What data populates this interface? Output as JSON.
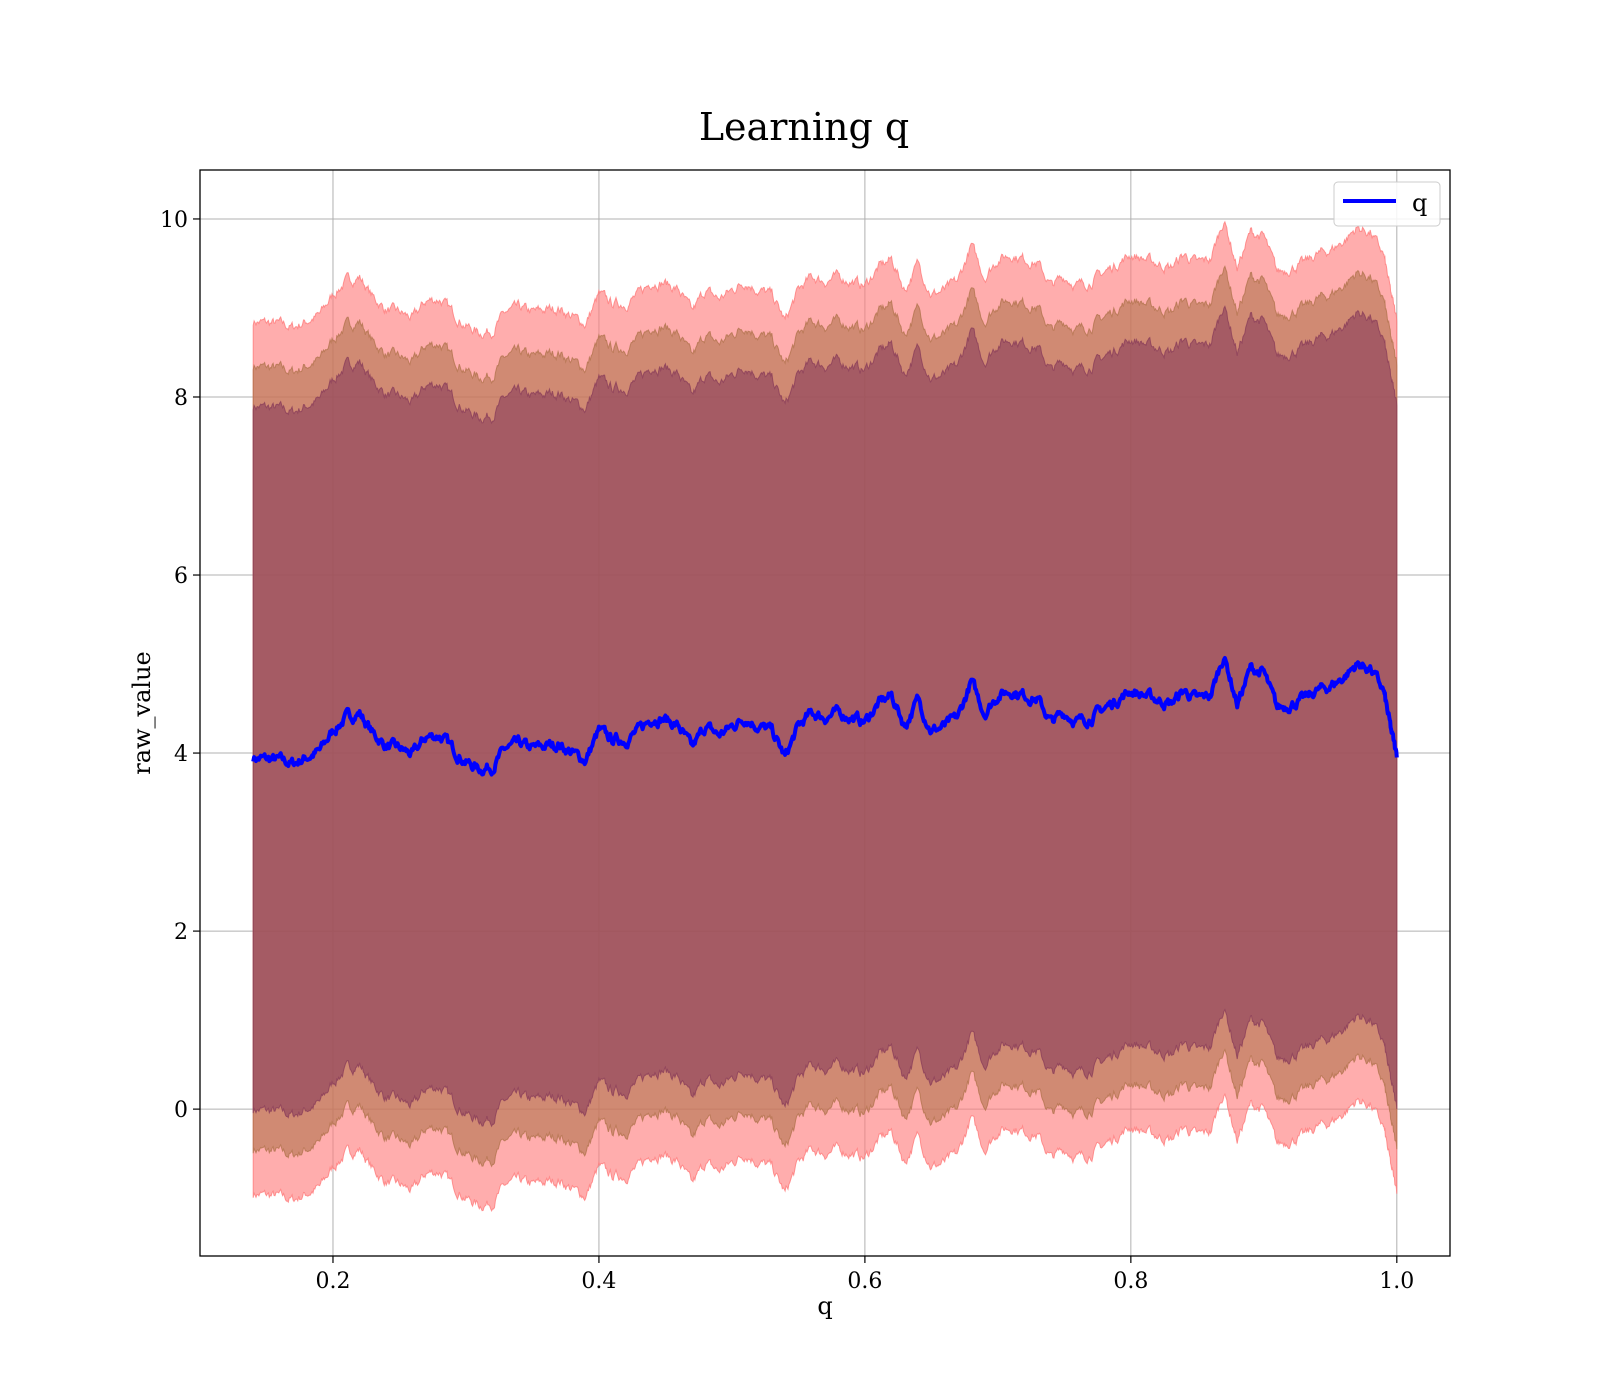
{
  "chart_data": {
    "type": "line",
    "title": "Learning q",
    "xlabel": "q",
    "ylabel": "raw_value",
    "xlim": [
      0.1,
      1.04
    ],
    "ylim": [
      -1.65,
      10.55
    ],
    "xticks": [
      0.2,
      0.4,
      0.6,
      0.8,
      1.0
    ],
    "xtick_labels": [
      "0.2",
      "0.4",
      "0.6",
      "0.8",
      "1.0"
    ],
    "yticks": [
      0,
      2,
      4,
      6,
      8,
      10
    ],
    "ytick_labels": [
      "0",
      "2",
      "4",
      "6",
      "8",
      "10"
    ],
    "grid": true,
    "legend": {
      "position": "top-right",
      "entries": [
        "q"
      ]
    },
    "colors": {
      "line": "#0000ff",
      "band_outer": "#ff7b7b",
      "band_middle": "#b3744f",
      "band_inner": "#8b3f5a",
      "grid": "#b0b0b0",
      "axis": "#000000"
    },
    "series": [
      {
        "name": "q",
        "x": [
          0.14,
          0.15,
          0.16,
          0.17,
          0.18,
          0.19,
          0.2,
          0.21,
          0.22,
          0.23,
          0.24,
          0.25,
          0.26,
          0.27,
          0.28,
          0.29,
          0.3,
          0.31,
          0.32,
          0.33,
          0.34,
          0.35,
          0.36,
          0.37,
          0.38,
          0.39,
          0.4,
          0.41,
          0.42,
          0.43,
          0.44,
          0.45,
          0.46,
          0.47,
          0.48,
          0.49,
          0.5,
          0.51,
          0.52,
          0.53,
          0.54,
          0.55,
          0.56,
          0.57,
          0.58,
          0.59,
          0.6,
          0.61,
          0.62,
          0.63,
          0.64,
          0.65,
          0.66,
          0.67,
          0.68,
          0.69,
          0.7,
          0.71,
          0.72,
          0.73,
          0.74,
          0.75,
          0.76,
          0.77,
          0.78,
          0.79,
          0.8,
          0.81,
          0.82,
          0.83,
          0.84,
          0.85,
          0.86,
          0.87,
          0.88,
          0.89,
          0.9,
          0.91,
          0.92,
          0.93,
          0.94,
          0.95,
          0.96,
          0.97,
          0.98,
          0.99,
          0.995,
          1.0
        ],
        "y": [
          3.95,
          3.93,
          3.92,
          3.88,
          3.95,
          4.02,
          4.25,
          4.4,
          4.45,
          4.22,
          4.08,
          4.05,
          3.98,
          4.18,
          4.2,
          4.05,
          3.9,
          3.82,
          3.85,
          4.05,
          4.1,
          4.05,
          4.08,
          4.1,
          4.0,
          3.92,
          4.25,
          4.15,
          4.15,
          4.25,
          4.4,
          4.38,
          4.3,
          4.05,
          4.3,
          4.2,
          4.3,
          4.4,
          4.3,
          4.25,
          3.95,
          4.3,
          4.45,
          4.4,
          4.45,
          4.4,
          4.35,
          4.55,
          4.65,
          4.3,
          4.6,
          4.25,
          4.3,
          4.4,
          4.8,
          4.45,
          4.65,
          4.7,
          4.65,
          4.6,
          4.35,
          4.45,
          4.35,
          4.4,
          4.5,
          4.6,
          4.7,
          4.65,
          4.6,
          4.55,
          4.7,
          4.6,
          4.65,
          5.1,
          4.55,
          4.95,
          4.9,
          4.5,
          4.55,
          4.6,
          4.7,
          4.75,
          4.85,
          5.0,
          4.95,
          4.7,
          4.3,
          3.95
        ]
      }
    ],
    "bands": [
      {
        "name": "",
        "half_width_lower": 4.9,
        "half_width_upper": 4.9,
        "color": "#ff7b7b",
        "opacity": 0.62
      },
      {
        "name": "",
        "half_width_lower": 4.4,
        "half_width_upper": 4.4,
        "color": "#b3744f",
        "opacity": 0.62
      },
      {
        "name": "",
        "half_width_lower": 3.95,
        "half_width_upper": 3.95,
        "color": "#8b3f5a",
        "opacity": 0.62
      }
    ]
  }
}
